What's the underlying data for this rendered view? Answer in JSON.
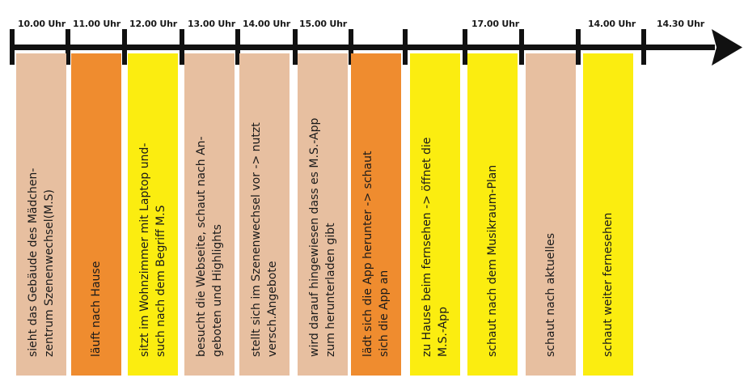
{
  "colors": {
    "line": "#111111",
    "beige": "#E7BFA0",
    "orange": "#EF8C2F",
    "yellow": "#FBED10"
  },
  "time_labels": [
    {
      "text": "10.00 Uhr"
    },
    {
      "text": "11.00 Uhr"
    },
    {
      "text": "12.00 Uhr"
    },
    {
      "text": "13.00 Uhr"
    },
    {
      "text": "14.00 Uhr"
    },
    {
      "text": "15.00 Uhr"
    },
    {
      "text": "17.00 Uhr"
    },
    {
      "text": "14.00 Uhr"
    },
    {
      "text": "14.30 Uhr"
    }
  ],
  "activities": [
    {
      "color": "beige",
      "text": "sieht das Gebäude des Mädchen-\nzentrum Szenenwechsel(M.S)"
    },
    {
      "color": "orange",
      "text": "läuft nach Hause"
    },
    {
      "color": "yellow",
      "text": "sitzt im Wohnzimmer mit Laptop und-\nsuch nach  dem Begriff M.S"
    },
    {
      "color": "beige",
      "text": "besucht die Webseite, schaut nach An-\ngeboten  und Highlights"
    },
    {
      "color": "beige",
      "text": "stellt sich im Szenenwechsel vor -> nutzt\nversch.Angebote"
    },
    {
      "color": "beige",
      "text": "wird darauf hingewiesen dass es M.S.-App\nzum herunterladen gibt"
    },
    {
      "color": "orange",
      "text": "lädt sich die App herunter -> schaut\nsich die App an"
    },
    {
      "color": "yellow",
      "text": "zu Hause beim fernsehen -> öffnet die\nM.S.-App"
    },
    {
      "color": "yellow",
      "text": "schaut nach dem Musikraum-Plan"
    },
    {
      "color": "beige",
      "text": "schaut nach aktuelles"
    },
    {
      "color": "yellow",
      "text": "schaut weiter fernesehen"
    }
  ]
}
